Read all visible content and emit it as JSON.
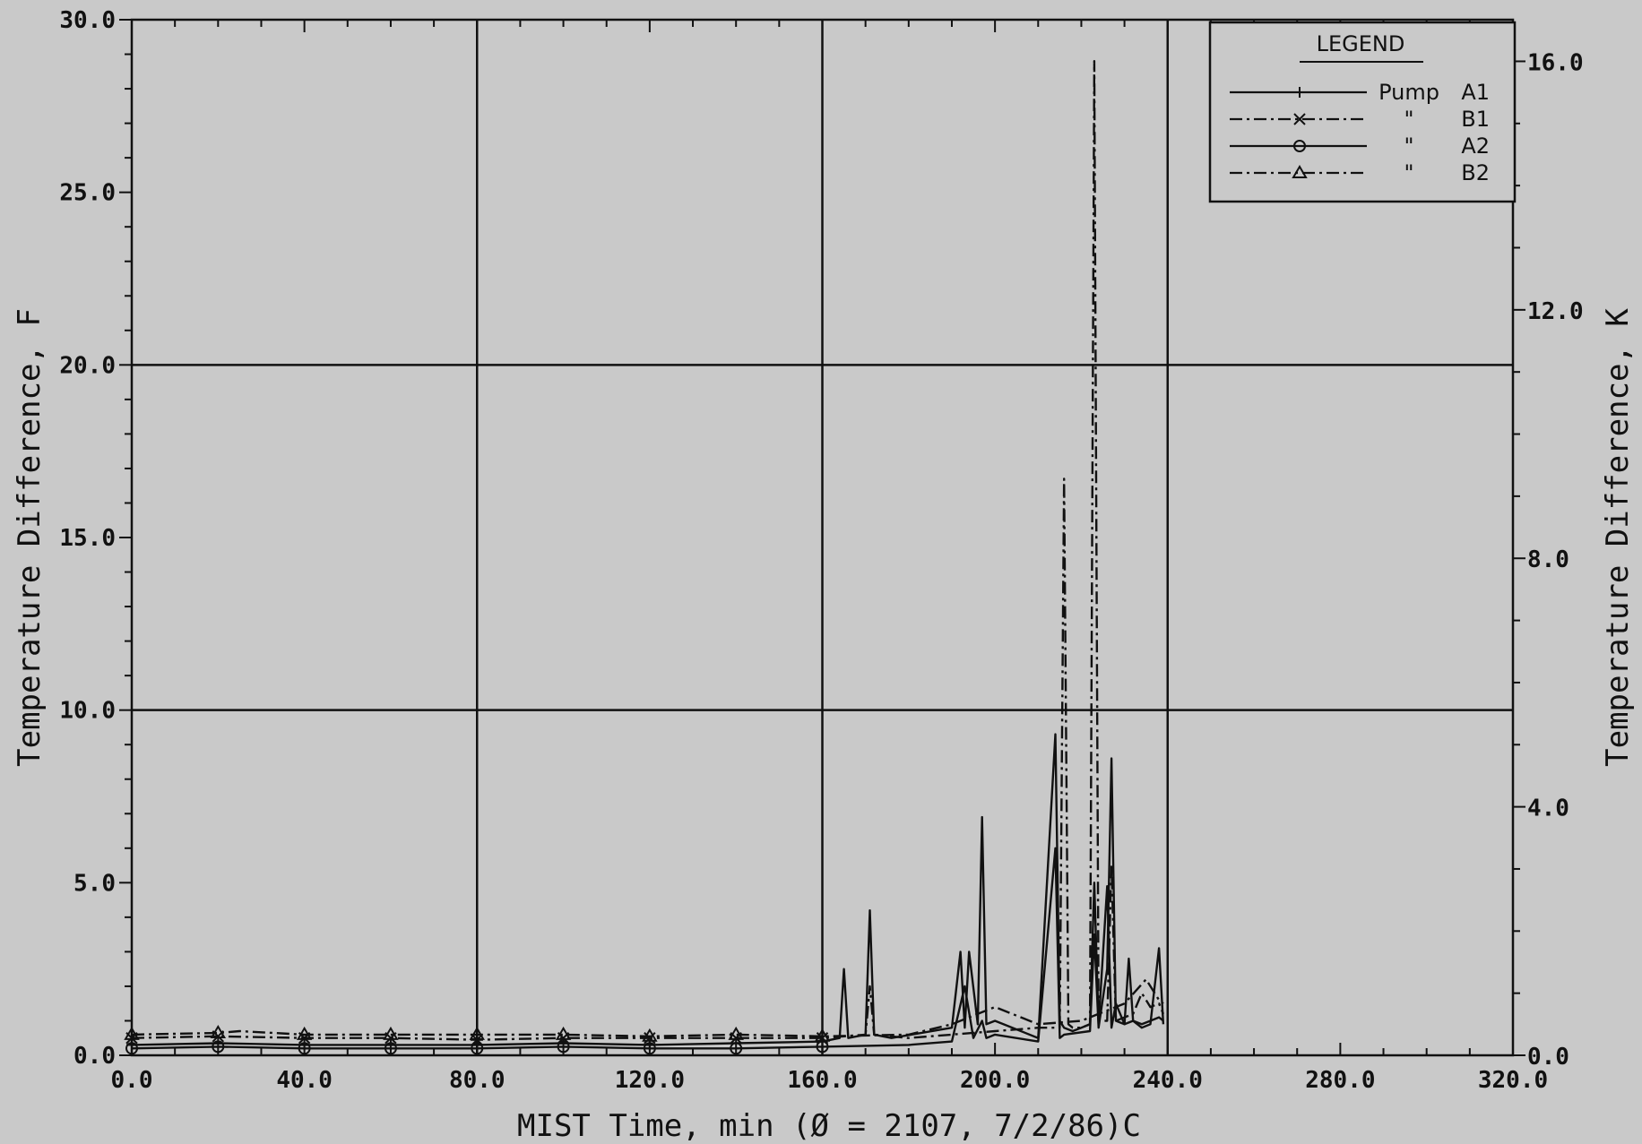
{
  "chart_data": {
    "type": "line",
    "xlabel": "MIST Time, min   (Ø = 2107, 7/2/86)C",
    "ylabel_left": "Temperature Difference, F",
    "ylabel_right": "Temperature Difference, K",
    "xlim": [
      0,
      320
    ],
    "ylim_left": [
      0,
      30
    ],
    "ylim_right": [
      0,
      16.67
    ],
    "x_ticks": [
      "0.0",
      "40.0",
      "80.0",
      "120.0",
      "160.0",
      "200.0",
      "240.0",
      "280.0",
      "320.0"
    ],
    "y_ticks_left": [
      "0.0",
      "5.0",
      "10.0",
      "15.0",
      "20.0",
      "25.0",
      "30.0"
    ],
    "y_ticks_right": [
      "0.0",
      "4.0",
      "8.0",
      "12.0",
      "16.0"
    ],
    "grid": true,
    "legend": {
      "title": "LEGEND",
      "placement": "top-right",
      "entries": [
        {
          "prefix": "Pump",
          "label": "A1",
          "marker": "+",
          "dash": "solid"
        },
        {
          "prefix": "\"",
          "label": "B1",
          "marker": "x",
          "dash": "dash-dot"
        },
        {
          "prefix": "\"",
          "label": "A2",
          "marker": "o",
          "dash": "solid"
        },
        {
          "prefix": "\"",
          "label": "B2",
          "marker": "triangle",
          "dash": "dash-dot"
        }
      ]
    },
    "series": [
      {
        "name": "A1",
        "x": [
          0,
          20,
          40,
          60,
          80,
          100,
          120,
          140,
          160,
          164,
          165,
          166,
          170,
          171,
          172,
          176,
          190,
          192,
          193,
          194,
          196,
          197,
          198,
          200,
          210,
          214,
          215,
          216,
          218,
          220,
          222,
          223,
          224,
          226,
          227,
          228,
          230,
          232,
          234,
          236,
          238,
          239
        ],
        "y": [
          0.3,
          0.35,
          0.3,
          0.3,
          0.3,
          0.35,
          0.3,
          0.35,
          0.4,
          0.5,
          2.5,
          0.5,
          0.6,
          4.2,
          0.6,
          0.5,
          0.8,
          3.0,
          0.8,
          3.0,
          0.9,
          6.9,
          0.9,
          1.0,
          0.5,
          9.3,
          1.0,
          0.8,
          0.7,
          0.8,
          0.9,
          5.0,
          0.9,
          4.9,
          0.8,
          1.5,
          0.9,
          1.0,
          0.8,
          0.9,
          3.1,
          0.9
        ]
      },
      {
        "name": "B1",
        "x": [
          0,
          20,
          40,
          60,
          80,
          100,
          120,
          140,
          160,
          170,
          171,
          172,
          180,
          190,
          200,
          210,
          215,
          216,
          217,
          218,
          220,
          222,
          223,
          224,
          226,
          227,
          228,
          230,
          232,
          234,
          236,
          238,
          239
        ],
        "y": [
          0.5,
          0.55,
          0.5,
          0.5,
          0.45,
          0.5,
          0.5,
          0.5,
          0.5,
          0.6,
          2.0,
          0.6,
          0.5,
          0.6,
          0.7,
          0.8,
          0.8,
          16.7,
          0.9,
          0.8,
          0.8,
          0.9,
          28.8,
          1.0,
          1.0,
          5.5,
          1.0,
          1.1,
          1.2,
          1.8,
          1.4,
          1.5,
          1.2
        ]
      },
      {
        "name": "A2",
        "x": [
          0,
          20,
          40,
          60,
          80,
          100,
          120,
          140,
          160,
          180,
          190,
          193,
          195,
          197,
          198,
          200,
          210,
          214,
          215,
          216,
          222,
          223,
          224,
          226,
          227,
          228,
          230,
          231,
          232,
          234,
          236,
          238,
          239
        ],
        "y": [
          0.2,
          0.25,
          0.2,
          0.2,
          0.2,
          0.25,
          0.2,
          0.2,
          0.25,
          0.3,
          0.4,
          2.0,
          0.5,
          1.0,
          0.5,
          0.6,
          0.4,
          6.0,
          0.5,
          0.6,
          0.7,
          3.5,
          0.8,
          2.5,
          8.6,
          1.0,
          0.9,
          2.8,
          1.0,
          0.9,
          1.0,
          1.1,
          1.0
        ]
      },
      {
        "name": "B2",
        "x": [
          0,
          20,
          25,
          40,
          60,
          80,
          100,
          120,
          140,
          160,
          180,
          190,
          200,
          210,
          220,
          230,
          235,
          236,
          237,
          238,
          239
        ],
        "y": [
          0.6,
          0.65,
          0.7,
          0.6,
          0.6,
          0.6,
          0.6,
          0.55,
          0.6,
          0.55,
          0.6,
          0.9,
          1.4,
          0.9,
          1.0,
          1.5,
          2.2,
          2.0,
          1.8,
          1.6,
          1.5
        ]
      }
    ]
  }
}
